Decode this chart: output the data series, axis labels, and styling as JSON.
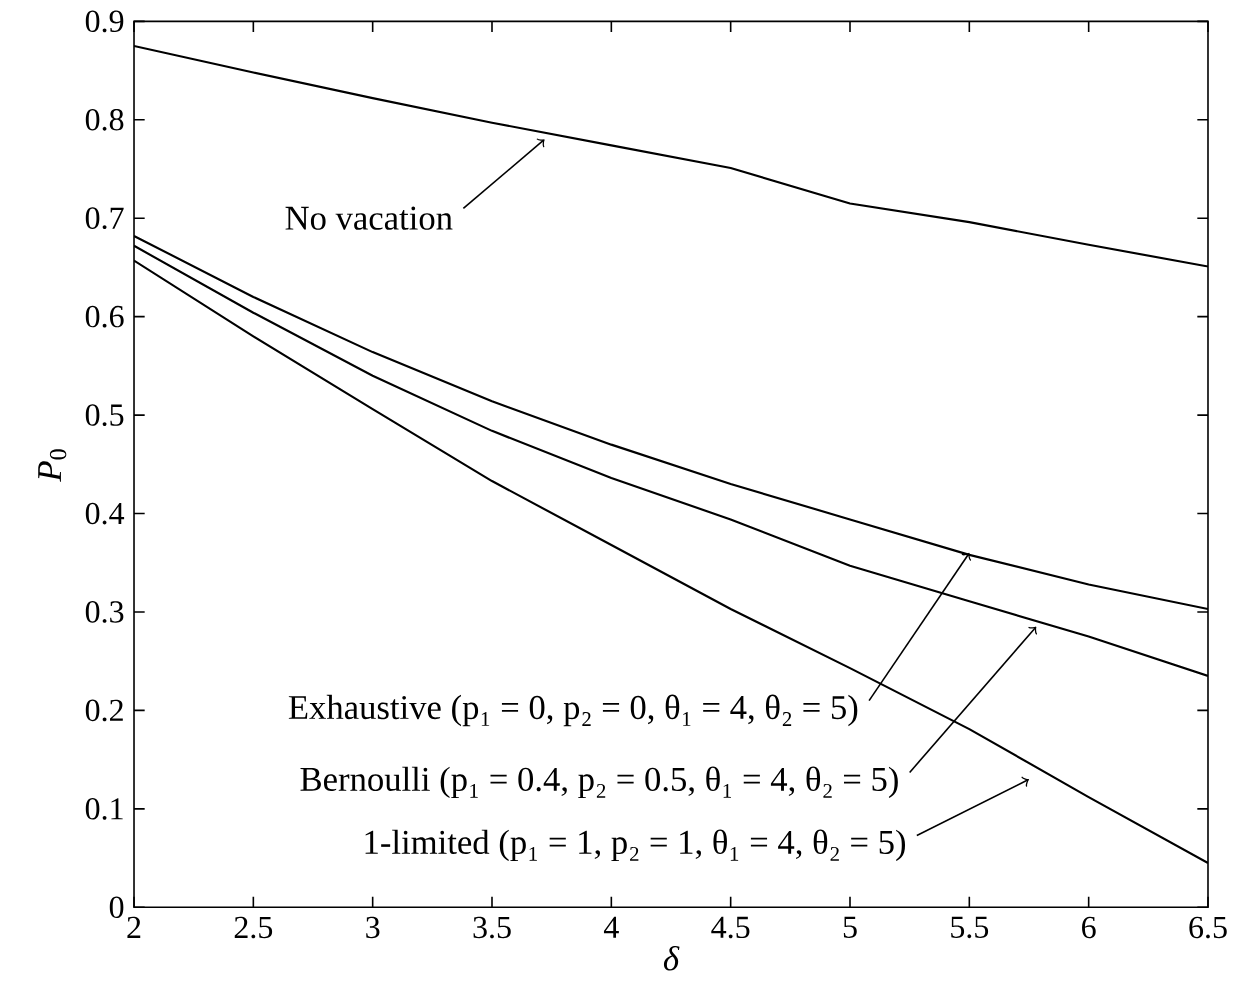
{
  "chart_data": {
    "type": "line",
    "xlabel": "δ",
    "ylabel": "*P*$_{0}$",
    "xlim": [
      2,
      6.5
    ],
    "ylim": [
      0,
      0.9
    ],
    "xticks": [
      2,
      2.5,
      3,
      3.5,
      4,
      4.5,
      5,
      5.5,
      6,
      6.5
    ],
    "yticks": [
      0,
      0.1,
      0.2,
      0.3,
      0.4,
      0.5,
      0.6,
      0.7,
      0.8,
      0.9
    ],
    "x": [
      2,
      2.5,
      3,
      3.5,
      4,
      4.5,
      5,
      5.5,
      6,
      6.5
    ],
    "series": [
      {
        "color": "#000000",
        "values": [
          0.875,
          0.848,
          0.822,
          0.797,
          0.774,
          0.751,
          0.715,
          0.696,
          0.673,
          0.651
        ]
      },
      {
        "color": "#000000",
        "values": [
          0.682,
          0.62,
          0.564,
          0.514,
          0.47,
          0.43,
          0.394,
          0.358,
          0.328,
          0.303
        ]
      },
      {
        "color": "#000000",
        "values": [
          0.672,
          0.604,
          0.54,
          0.484,
          0.436,
          0.394,
          0.347,
          0.311,
          0.275,
          0.235
        ]
      },
      {
        "color": "#000000",
        "values": [
          0.657,
          0.58,
          0.506,
          0.433,
          0.368,
          0.303,
          0.243,
          0.181,
          0.112,
          0.045
        ]
      }
    ],
    "annotations": [
      {
        "text": "No vacation",
        "x": 3.72,
        "y": 0.78
      },
      {
        "text": "Exhaustive (p₁ = 0, p₂ = 0, θ₁ = 4, θ₂ = 5)",
        "x": 5.5,
        "y": 0.36
      },
      {
        "text": "Bernoulli (p₁ = 0.4, p₂ = 0.5, θ₁ = 4, θ₂ = 5)",
        "x": 5.78,
        "y": 0.285
      },
      {
        "text": "1-limited (p₁ = 1, p₂ = 1, θ₁ = 4, θ₂ = 5)",
        "x": 5.75,
        "y": 0.13
      }
    ],
    "marker": "none",
    "line_style": "solid",
    "grid": false
  }
}
